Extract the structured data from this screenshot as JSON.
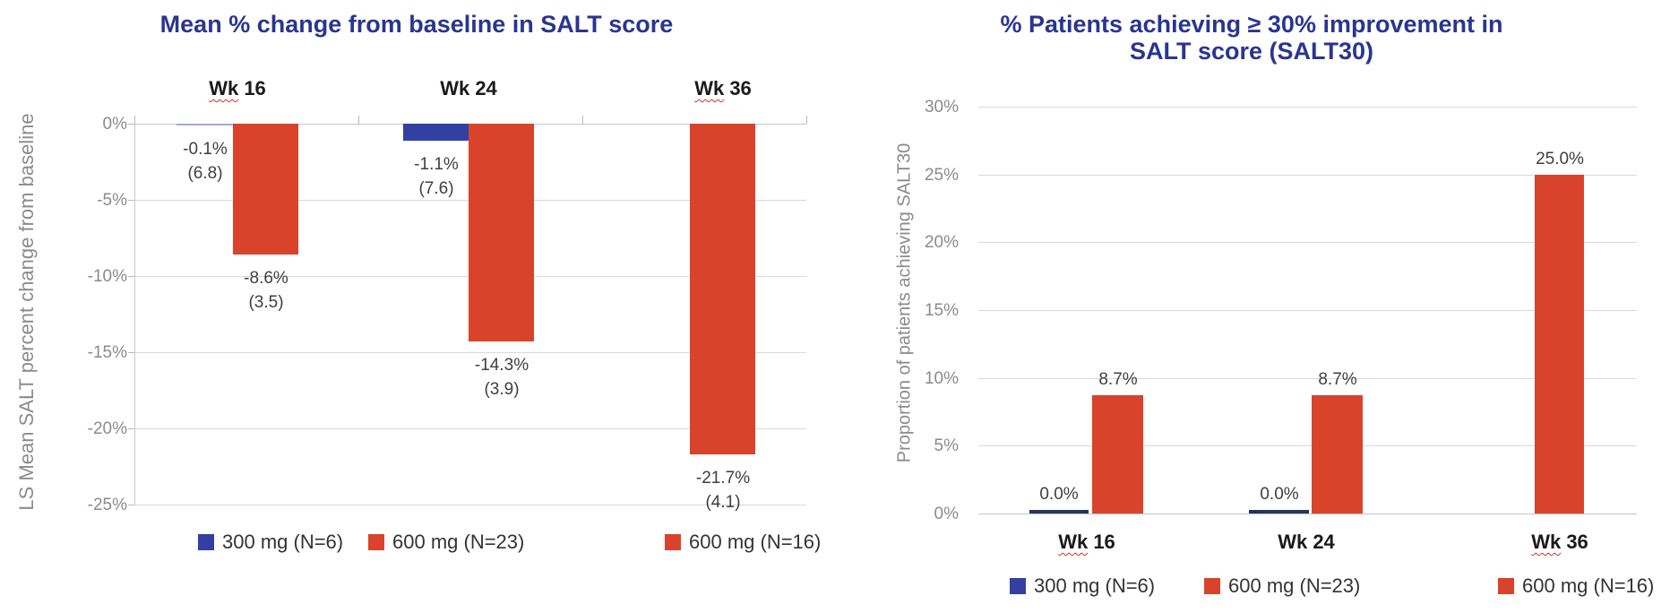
{
  "colors": {
    "title_navy": "#2a3590",
    "blue": "#3140a2",
    "orange": "#d9432b",
    "thin_light_blue": "#9fadd6",
    "thin_dark_navy": "#26355c",
    "axis_text_gray": "#8b8b8b",
    "value_text": "#3f3f3f",
    "category_text": "#1a1a1a",
    "legend_text": "#333333",
    "gridline": "#d9d9d9",
    "zero_line": "#c2c6cc",
    "squiggle_red": "#cc3333",
    "background": "#ffffff"
  },
  "chart_data": [
    {
      "type": "bar",
      "title": "Mean % change from baseline in SALT score",
      "ylabel": "LS Mean SALT percent change from baseline",
      "categories": [
        "Wk 16",
        "Wk 24",
        "Wk 36"
      ],
      "category_squiggle": [
        true,
        false,
        true
      ],
      "category_labels_position": "top",
      "ylim": [
        -25,
        0
      ],
      "ytick_values": [
        0,
        -5,
        -10,
        -15,
        -20,
        -25
      ],
      "ytick_labels": [
        "0%",
        "-5%",
        "-10%",
        "-15%",
        "-20%",
        "-25%"
      ],
      "grid": true,
      "legend_position": "bottom",
      "series": [
        {
          "name": "300 mg (N=6)",
          "color": "blue",
          "values": [
            -0.1,
            -1.1,
            null
          ],
          "value_labels": [
            [
              "-0.1%",
              "(6.8)"
            ],
            [
              "-1.1%",
              "(7.6)"
            ],
            null
          ]
        },
        {
          "name": "600 mg (N=23)",
          "color": "orange",
          "values": [
            -8.6,
            -14.3,
            null
          ],
          "value_labels": [
            [
              "-8.6%",
              "(3.5)"
            ],
            [
              "-14.3%",
              "(3.9)"
            ],
            null
          ]
        },
        {
          "name": "600 mg (N=16)",
          "color": "orange",
          "values": [
            null,
            null,
            -21.7
          ],
          "value_labels": [
            null,
            null,
            [
              "-21.7%",
              "(4.1)"
            ]
          ]
        }
      ]
    },
    {
      "type": "bar",
      "title": "% Patients achieving ≥ 30% improvement in SALT score (SALT30)",
      "ylabel": "Proportion of patients achieving SALT30",
      "categories": [
        "Wk 16",
        "Wk 24",
        "Wk 36"
      ],
      "category_squiggle": [
        true,
        false,
        true
      ],
      "category_labels_position": "bottom",
      "ylim": [
        0,
        30
      ],
      "ytick_values": [
        30,
        25,
        20,
        15,
        10,
        5,
        0
      ],
      "ytick_labels": [
        "30%",
        "25%",
        "20%",
        "15%",
        "10%",
        "5%",
        "0%"
      ],
      "grid": true,
      "legend_position": "bottom",
      "series": [
        {
          "name": "300 mg (N=6)",
          "color": "blue",
          "values": [
            0.0,
            0.0,
            null
          ],
          "value_labels": [
            [
              "0.0%"
            ],
            [
              "0.0%"
            ],
            null
          ]
        },
        {
          "name": "600 mg (N=23)",
          "color": "orange",
          "values": [
            8.7,
            8.7,
            null
          ],
          "value_labels": [
            [
              "8.7%"
            ],
            [
              "8.7%"
            ],
            null
          ]
        },
        {
          "name": "600 mg (N=16)",
          "color": "orange",
          "values": [
            null,
            null,
            25.0
          ],
          "value_labels": [
            null,
            null,
            [
              "25.0%"
            ]
          ]
        }
      ]
    }
  ]
}
